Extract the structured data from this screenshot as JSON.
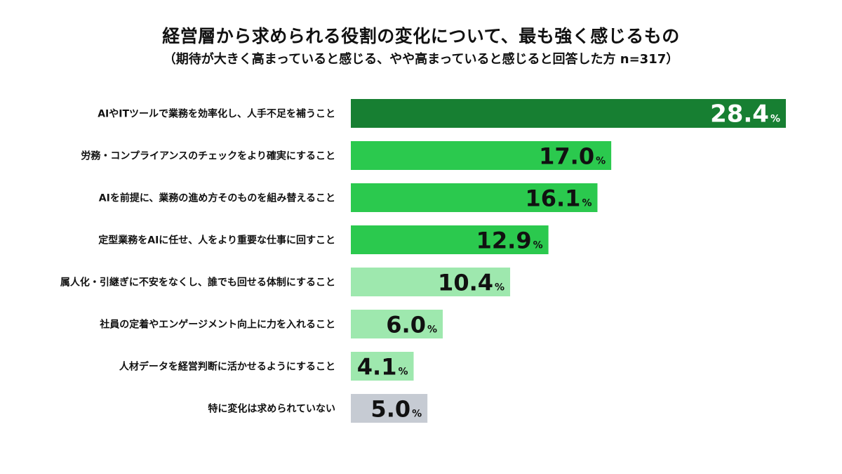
{
  "chart_data": {
    "type": "bar",
    "orientation": "horizontal",
    "title": "経営層から求められる役割の変化について、最も強く感じるもの",
    "subtitle": "（期待が大きく高まっていると感じる、やや高まっていると感じると回答した方 n=317）",
    "unit": "%",
    "categories": [
      "AIやITツールで業務を効率化し、人手不足を補うこと",
      "労務・コンプライアンスのチェックをより確実にすること",
      "AIを前提に、業務の進め方そのものを組み替えること",
      "定型業務をAIに任せ、人をより重要な仕事に回すこと",
      "属人化・引継ぎに不安をなくし、誰でも回せる体制にすること",
      "社員の定着やエンゲージメント向上に力を入れること",
      "人材データを経営判断に活かせるようにすること",
      "特に変化は求められていない"
    ],
    "values": [
      28.4,
      17.0,
      16.1,
      12.9,
      10.4,
      6.0,
      4.1,
      5.0
    ],
    "value_labels": [
      "28.4",
      "17.0",
      "16.1",
      "12.9",
      "10.4",
      "6.0",
      "4.1",
      "5.0"
    ],
    "bar_colors": [
      "#177f32",
      "#2bc94e",
      "#2bc94e",
      "#2bc94e",
      "#9ee8ae",
      "#9ee8ae",
      "#9ee8ae",
      "#c6cbd3"
    ],
    "label_colors": [
      "#ffffff",
      "#111111",
      "#111111",
      "#111111",
      "#111111",
      "#111111",
      "#111111",
      "#111111"
    ],
    "xlim": [
      0,
      28.4
    ],
    "grid": false,
    "legend": "none"
  }
}
